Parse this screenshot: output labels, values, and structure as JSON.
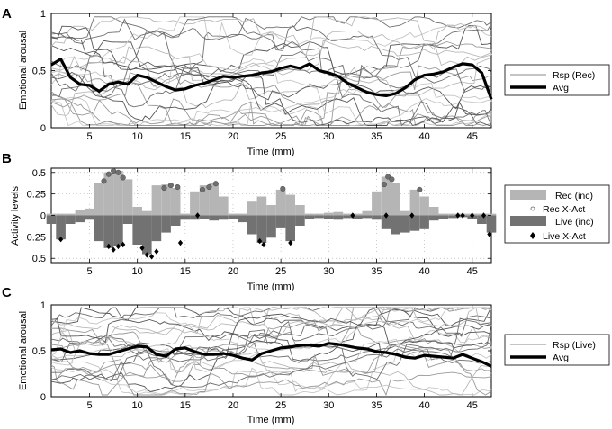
{
  "panel_labels": [
    "A",
    "B",
    "C"
  ],
  "chart_data": [
    {
      "type": "line",
      "panel": "A",
      "xlabel": "Time (mm)",
      "ylabel": "Emotional arousal",
      "xlim": [
        1,
        47
      ],
      "ylim": [
        0,
        1
      ],
      "xticks": [
        5,
        10,
        15,
        20,
        25,
        30,
        35,
        40,
        45
      ],
      "yticks": [
        0,
        0.5,
        1
      ],
      "ytick_labels": [
        "0",
        "0.5",
        "1"
      ],
      "grid": false,
      "legend": {
        "placement": "right",
        "entries": [
          "Rsp (Rec)",
          "Avg"
        ]
      },
      "colors": {
        "responses": [
          "#9a9a9a",
          "#6e6e6e",
          "#b8b8b8",
          "#555555",
          "#c6c6c6"
        ],
        "avg": "#000000"
      },
      "series": [
        {
          "name": "Avg",
          "x": [
            1,
            2,
            3,
            4,
            5,
            6,
            7,
            8,
            9,
            10,
            11,
            12,
            13,
            14,
            15,
            16,
            17,
            18,
            19,
            20,
            21,
            22,
            23,
            24,
            25,
            26,
            27,
            28,
            29,
            30,
            31,
            32,
            33,
            34,
            35,
            36,
            37,
            38,
            39,
            40,
            41,
            42,
            43,
            44,
            45,
            46,
            47
          ],
          "values": [
            0.55,
            0.6,
            0.44,
            0.38,
            0.37,
            0.32,
            0.38,
            0.4,
            0.38,
            0.46,
            0.44,
            0.4,
            0.36,
            0.33,
            0.34,
            0.37,
            0.39,
            0.42,
            0.45,
            0.44,
            0.45,
            0.46,
            0.48,
            0.49,
            0.52,
            0.54,
            0.52,
            0.56,
            0.5,
            0.48,
            0.45,
            0.39,
            0.35,
            0.31,
            0.29,
            0.28,
            0.3,
            0.35,
            0.42,
            0.46,
            0.47,
            0.49,
            0.53,
            0.56,
            0.55,
            0.48,
            0.25
          ]
        }
      ]
    },
    {
      "type": "bar",
      "panel": "B",
      "xlabel": "Time (mm)",
      "ylabel": "Activity levels",
      "xlim": [
        1,
        47
      ],
      "ylim": [
        -0.55,
        0.55
      ],
      "xticks": [
        5,
        10,
        15,
        20,
        25,
        30,
        35,
        40,
        45
      ],
      "yticks": [
        0.5,
        0.25,
        0,
        -0.25,
        -0.5
      ],
      "ytick_labels": [
        "0.5",
        "0.25",
        "0",
        "0.25",
        "0.5"
      ],
      "grid": true,
      "legend": {
        "placement": "right",
        "entries": [
          "Rec (inc)",
          "Rec X-Act",
          "Live (inc)",
          "Live X-Act"
        ]
      },
      "colors": {
        "rec": "#b5b5b5",
        "live": "#727272",
        "rec_x_act": "#6f6f6f",
        "live_x_act": "#000000"
      },
      "series": [
        {
          "name": "Rec (inc)",
          "x": [
            1,
            2,
            3,
            4,
            5,
            6,
            7,
            8,
            9,
            10,
            11,
            12,
            13,
            14,
            15,
            16,
            17,
            18,
            19,
            20,
            21,
            22,
            23,
            24,
            25,
            26,
            27,
            28,
            29,
            30,
            31,
            32,
            33,
            34,
            35,
            36,
            37,
            38,
            39,
            40,
            41,
            42,
            43,
            44,
            45,
            46,
            47
          ],
          "values": [
            0.02,
            0.02,
            0.02,
            0.06,
            0.08,
            0.38,
            0.5,
            0.52,
            0.42,
            0.1,
            0.05,
            0.35,
            0.36,
            0.32,
            0.02,
            0.28,
            0.35,
            0.38,
            0.22,
            0.02,
            0.02,
            0.16,
            0.22,
            0.12,
            0.3,
            0.24,
            0.12,
            0.02,
            0.02,
            0.03,
            0.04,
            0.02,
            0.02,
            0.05,
            0.28,
            0.45,
            0.38,
            0.05,
            0.3,
            0.22,
            0.1,
            0.02,
            0.02,
            0.02,
            0.02,
            0.02,
            0.02
          ]
        },
        {
          "name": "Live (inc)",
          "x": [
            1,
            2,
            3,
            4,
            5,
            6,
            7,
            8,
            9,
            10,
            11,
            12,
            13,
            14,
            15,
            16,
            17,
            18,
            19,
            20,
            21,
            22,
            23,
            24,
            25,
            26,
            27,
            28,
            29,
            30,
            31,
            32,
            33,
            34,
            35,
            36,
            37,
            38,
            39,
            40,
            41,
            42,
            43,
            44,
            45,
            46,
            47
          ],
          "values": [
            -0.1,
            -0.28,
            -0.1,
            -0.08,
            -0.05,
            -0.3,
            -0.38,
            -0.36,
            -0.1,
            -0.34,
            -0.45,
            -0.3,
            -0.2,
            -0.12,
            -0.05,
            -0.05,
            -0.04,
            -0.06,
            -0.05,
            -0.04,
            -0.08,
            -0.22,
            -0.32,
            -0.26,
            -0.14,
            -0.3,
            -0.12,
            -0.04,
            -0.03,
            -0.04,
            -0.05,
            -0.03,
            -0.04,
            -0.03,
            -0.05,
            -0.16,
            -0.22,
            -0.2,
            -0.18,
            -0.16,
            -0.06,
            -0.04,
            -0.03,
            -0.02,
            -0.04,
            -0.1,
            -0.2
          ]
        },
        {
          "name": "Rec X-Act",
          "x": [
            6.5,
            7,
            7.5,
            8,
            8.5,
            12.8,
            13.5,
            14.2,
            16.8,
            17.5,
            18.2,
            25.2,
            35.8,
            36.2,
            36.6,
            39.5
          ],
          "values": [
            0.4,
            0.48,
            0.52,
            0.5,
            0.44,
            0.32,
            0.35,
            0.33,
            0.3,
            0.33,
            0.37,
            0.31,
            0.36,
            0.45,
            0.42,
            0.3
          ]
        },
        {
          "name": "Live X-Act",
          "x": [
            2,
            7,
            7.5,
            8,
            8.5,
            10.5,
            11,
            11.5,
            12,
            14.5,
            16.3,
            22.8,
            23.2,
            26,
            32.5,
            36,
            38.7,
            43.5,
            44,
            45,
            46.2,
            46.8
          ],
          "values": [
            -0.28,
            -0.36,
            -0.4,
            -0.36,
            -0.34,
            -0.38,
            -0.46,
            -0.48,
            -0.42,
            -0.32,
            0.0,
            -0.3,
            -0.34,
            -0.32,
            0.0,
            0.0,
            0.0,
            0.0,
            0.0,
            0.0,
            0.0,
            -0.22
          ]
        }
      ]
    },
    {
      "type": "line",
      "panel": "C",
      "xlabel": "Time (mm)",
      "ylabel": "Emotional arousal",
      "xlim": [
        1,
        47
      ],
      "ylim": [
        0,
        1
      ],
      "xticks": [
        5,
        10,
        15,
        20,
        25,
        30,
        35,
        40,
        45
      ],
      "yticks": [
        0,
        0.5,
        1
      ],
      "ytick_labels": [
        "0",
        "0.5",
        "1"
      ],
      "grid": false,
      "legend": {
        "placement": "right",
        "entries": [
          "Rsp (Live)",
          "Avg"
        ]
      },
      "colors": {
        "responses": [
          "#9a9a9a",
          "#6e6e6e",
          "#b8b8b8",
          "#555555",
          "#c6c6c6"
        ],
        "avg": "#000000"
      },
      "series": [
        {
          "name": "Avg",
          "x": [
            1,
            2,
            3,
            4,
            5,
            6,
            7,
            8,
            9,
            10,
            11,
            12,
            13,
            14,
            15,
            16,
            17,
            18,
            19,
            20,
            21,
            22,
            23,
            24,
            25,
            26,
            27,
            28,
            29,
            30,
            31,
            32,
            33,
            34,
            35,
            36,
            37,
            38,
            39,
            40,
            41,
            42,
            43,
            44,
            45,
            46,
            47
          ],
          "values": [
            0.51,
            0.52,
            0.48,
            0.5,
            0.47,
            0.46,
            0.46,
            0.49,
            0.52,
            0.55,
            0.54,
            0.46,
            0.44,
            0.52,
            0.53,
            0.49,
            0.46,
            0.46,
            0.47,
            0.45,
            0.42,
            0.4,
            0.47,
            0.5,
            0.53,
            0.54,
            0.56,
            0.56,
            0.55,
            0.58,
            0.57,
            0.55,
            0.53,
            0.52,
            0.49,
            0.48,
            0.46,
            0.43,
            0.42,
            0.45,
            0.44,
            0.43,
            0.42,
            0.46,
            0.42,
            0.38,
            0.33
          ]
        }
      ]
    }
  ]
}
